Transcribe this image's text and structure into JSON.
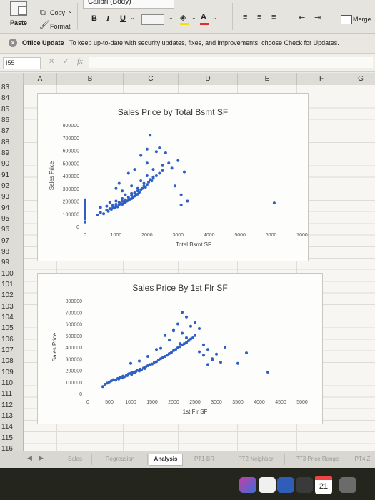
{
  "ribbon": {
    "font_name": "Calibri (Body)",
    "copy_label": "Copy",
    "paste_label": "Paste",
    "format_label": "Format",
    "bold": "B",
    "italic": "I",
    "underline": "U",
    "merge_label": "Merge"
  },
  "update_bar": {
    "title": "Office Update",
    "message": "To keep up-to-date with security updates, fixes, and improvements, choose Check for Updates."
  },
  "formula_bar": {
    "name_box": "I55",
    "fx": "fx"
  },
  "columns": [
    "A",
    "B",
    "C",
    "D",
    "E",
    "F",
    "G"
  ],
  "rows": [
    "83",
    "84",
    "85",
    "86",
    "87",
    "88",
    "89",
    "90",
    "91",
    "92",
    "93",
    "94",
    "95",
    "96",
    "97",
    "98",
    "99",
    "100",
    "101",
    "102",
    "103",
    "104",
    "105",
    "106",
    "107",
    "108",
    "109",
    "110",
    "111",
    "112",
    "113",
    "114",
    "115",
    "116"
  ],
  "sheet_tabs": {
    "tabs": [
      "Sales",
      "Regression",
      "Analysis",
      "PT1 BR",
      "PT2 Neighbor",
      "PT3 Price Range",
      "PT4 Z"
    ],
    "active": "Analysis"
  },
  "dock": {
    "calendar_day": "21"
  },
  "colors": {
    "marker": "#2e5fc5",
    "accent": "#217346"
  },
  "chart_data": [
    {
      "type": "scatter",
      "title": "Sales Price by Total Bsmt SF",
      "xlabel": "Total Bsmt SF",
      "ylabel": "Sales Price",
      "xlim": [
        0,
        7000
      ],
      "ylim": [
        0,
        800000
      ],
      "xticks": [
        "0",
        "1000",
        "2000",
        "3000",
        "4000",
        "5000",
        "6000",
        "7000"
      ],
      "yticks": [
        "0",
        "100000",
        "200000",
        "300000",
        "400000",
        "500000",
        "600000",
        "700000",
        "800000"
      ],
      "series": [
        {
          "x": [
            0,
            0,
            0,
            0,
            0,
            0,
            0,
            0,
            0,
            0,
            0,
            0,
            400,
            500,
            600,
            700,
            750,
            800,
            850,
            900,
            900,
            950,
            1000,
            1000,
            1050,
            1100,
            1100,
            1150,
            1200,
            1200,
            1250,
            1300,
            1300,
            1350,
            1400,
            1400,
            1450,
            1500,
            1500,
            1550,
            1600,
            1600,
            1650,
            1700,
            1700,
            1750,
            1800,
            1850,
            1900,
            1950,
            2000,
            2050,
            2100,
            2150,
            2200,
            2300,
            2400,
            500,
            700,
            900,
            1200,
            1500,
            800,
            1000,
            1300,
            1700,
            1900,
            2200,
            2500,
            3000,
            3200,
            3300,
            3100,
            2800,
            2600,
            1800,
            2000,
            2100,
            2300,
            2400,
            2000,
            1600,
            1400,
            1100,
            1000,
            1200,
            1500,
            1800,
            2000,
            2200,
            2500,
            2700,
            2900,
            3100,
            6100
          ],
          "y": [
            35000,
            60000,
            80000,
            100000,
            115000,
            125000,
            140000,
            150000,
            160000,
            170000,
            190000,
            210000,
            90000,
            110000,
            100000,
            130000,
            120000,
            140000,
            135000,
            150000,
            165000,
            145000,
            160000,
            175000,
            155000,
            170000,
            190000,
            180000,
            175000,
            200000,
            185000,
            190000,
            210000,
            200000,
            205000,
            230000,
            215000,
            220000,
            245000,
            230000,
            240000,
            265000,
            250000,
            255000,
            280000,
            270000,
            290000,
            300000,
            320000,
            310000,
            330000,
            350000,
            370000,
            360000,
            390000,
            400000,
            420000,
            150000,
            160000,
            170000,
            220000,
            260000,
            190000,
            200000,
            250000,
            300000,
            340000,
            380000,
            440000,
            520000,
            430000,
            200000,
            250000,
            460000,
            580000,
            560000,
            610000,
            720000,
            590000,
            620000,
            500000,
            450000,
            420000,
            340000,
            300000,
            280000,
            320000,
            360000,
            400000,
            450000,
            480000,
            500000,
            320000,
            170000,
            185000
          ]
        }
      ]
    },
    {
      "type": "scatter",
      "title": "Sales Price By 1st Flr SF",
      "xlabel": "1st Flr SF",
      "ylabel": "Sales Price",
      "xlim": [
        0,
        5000
      ],
      "ylim": [
        0,
        800000
      ],
      "xticks": [
        "0",
        "500",
        "1000",
        "1500",
        "2000",
        "2500",
        "3000",
        "3500",
        "4000",
        "4500",
        "5000"
      ],
      "yticks": [
        "0",
        "100000",
        "200000",
        "300000",
        "400000",
        "500000",
        "600000",
        "700000",
        "800000"
      ],
      "series": [
        {
          "x": [
            350,
            400,
            450,
            500,
            550,
            600,
            650,
            700,
            720,
            750,
            800,
            820,
            850,
            900,
            920,
            950,
            1000,
            1020,
            1050,
            1100,
            1120,
            1150,
            1200,
            1220,
            1250,
            1300,
            1320,
            1350,
            1400,
            1450,
            1500,
            1550,
            1600,
            1650,
            1700,
            1750,
            1800,
            1850,
            1900,
            1950,
            2000,
            2050,
            2100,
            2150,
            2200,
            2250,
            2300,
            2350,
            2400,
            2450,
            2500,
            2600,
            2700,
            2800,
            2900,
            3000,
            3100,
            3200,
            3500,
            2000,
            2100,
            2200,
            2300,
            1900,
            2400,
            2500,
            2600,
            2300,
            2200,
            2000,
            1800,
            2150,
            2700,
            2900,
            1700,
            3700,
            4200,
            2800,
            1600,
            1400,
            1200,
            1000
          ],
          "y": [
            60000,
            80000,
            90000,
            100000,
            110000,
            120000,
            115000,
            130000,
            125000,
            140000,
            135000,
            150000,
            145000,
            160000,
            155000,
            170000,
            175000,
            165000,
            185000,
            180000,
            190000,
            200000,
            195000,
            210000,
            205000,
            220000,
            215000,
            230000,
            240000,
            250000,
            255000,
            270000,
            275000,
            290000,
            300000,
            310000,
            320000,
            330000,
            345000,
            355000,
            370000,
            380000,
            395000,
            405000,
            420000,
            430000,
            440000,
            455000,
            470000,
            480000,
            500000,
            360000,
            420000,
            380000,
            290000,
            340000,
            270000,
            400000,
            260000,
            550000,
            600000,
            520000,
            480000,
            460000,
            580000,
            610000,
            560000,
            660000,
            700000,
            540000,
            500000,
            430000,
            330000,
            300000,
            390000,
            350000,
            185000,
            250000,
            380000,
            320000,
            280000,
            260000
          ]
        }
      ]
    }
  ]
}
